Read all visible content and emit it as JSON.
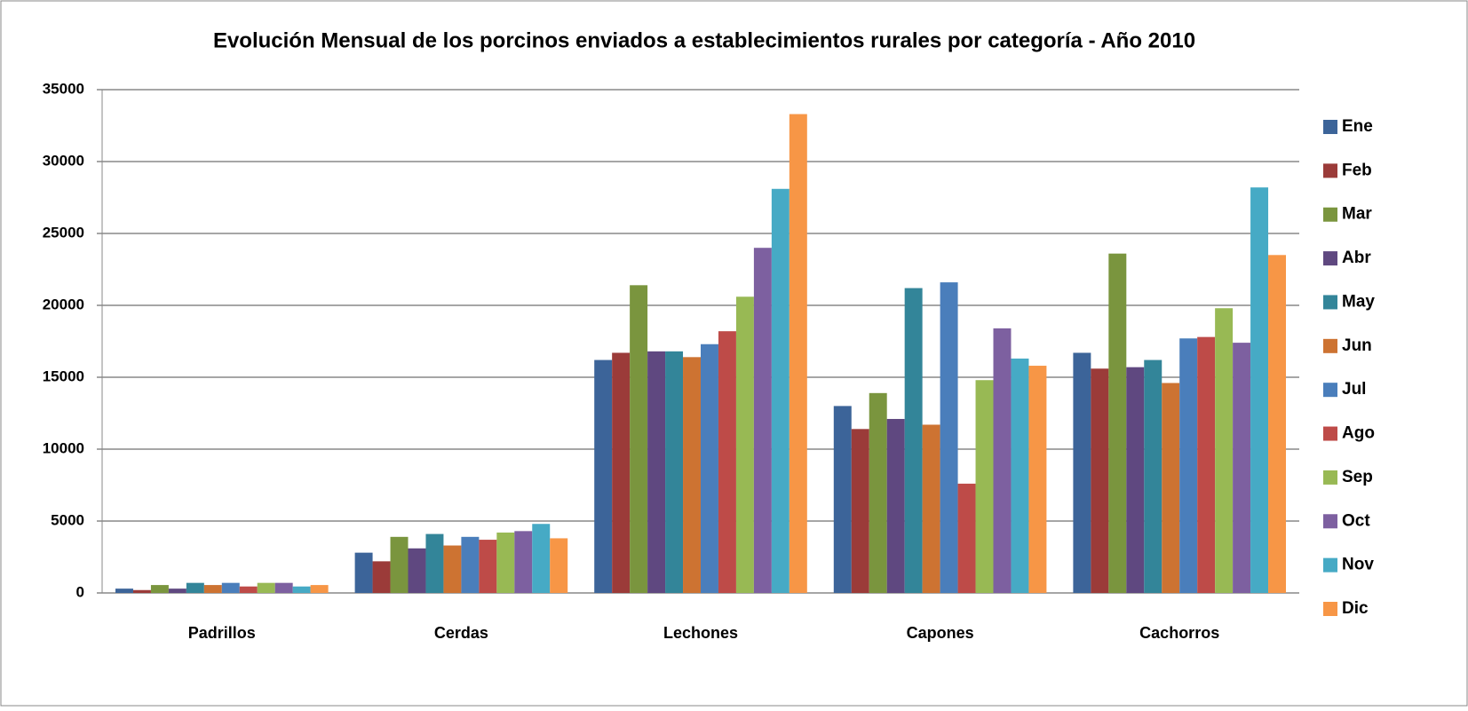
{
  "chart_data": {
    "type": "bar",
    "title": "Evolución Mensual de los porcinos enviados a establecimientos rurales por categoría - Año 2010",
    "categories": [
      "Padrillos",
      "Cerdas",
      "Lechones",
      "Capones",
      "Cachorros"
    ],
    "series": [
      {
        "name": "Ene",
        "color": "#3c6499",
        "values": [
          300,
          2800,
          16200,
          13000,
          16700
        ]
      },
      {
        "name": "Feb",
        "color": "#9b3b39",
        "values": [
          200,
          2200,
          16700,
          11400,
          15600
        ]
      },
      {
        "name": "Mar",
        "color": "#7a953e",
        "values": [
          550,
          3900,
          21400,
          13900,
          23600
        ]
      },
      {
        "name": "Abr",
        "color": "#5f4880",
        "values": [
          300,
          3100,
          16800,
          12100,
          15700
        ]
      },
      {
        "name": "May",
        "color": "#338599",
        "values": [
          700,
          4100,
          16800,
          21200,
          16200
        ]
      },
      {
        "name": "Jun",
        "color": "#cd7332",
        "values": [
          550,
          3300,
          16400,
          11700,
          14600
        ]
      },
      {
        "name": "Jul",
        "color": "#4a7ebb",
        "values": [
          700,
          3900,
          17300,
          21600,
          17700
        ]
      },
      {
        "name": "Ago",
        "color": "#be4b48",
        "values": [
          450,
          3700,
          18200,
          7600,
          17800
        ]
      },
      {
        "name": "Sep",
        "color": "#98b954",
        "values": [
          700,
          4200,
          20600,
          14800,
          19800
        ]
      },
      {
        "name": "Oct",
        "color": "#7d60a0",
        "values": [
          700,
          4300,
          24000,
          18400,
          17400
        ]
      },
      {
        "name": "Nov",
        "color": "#46aac5",
        "values": [
          450,
          4800,
          28100,
          16300,
          28200
        ]
      },
      {
        "name": "Dic",
        "color": "#f79646",
        "values": [
          550,
          3800,
          33300,
          15800,
          23500
        ]
      }
    ],
    "ylim": [
      0,
      35000
    ],
    "yticks": [
      0,
      5000,
      10000,
      15000,
      20000,
      25000,
      30000,
      35000
    ],
    "grid": true,
    "legend": "right"
  }
}
